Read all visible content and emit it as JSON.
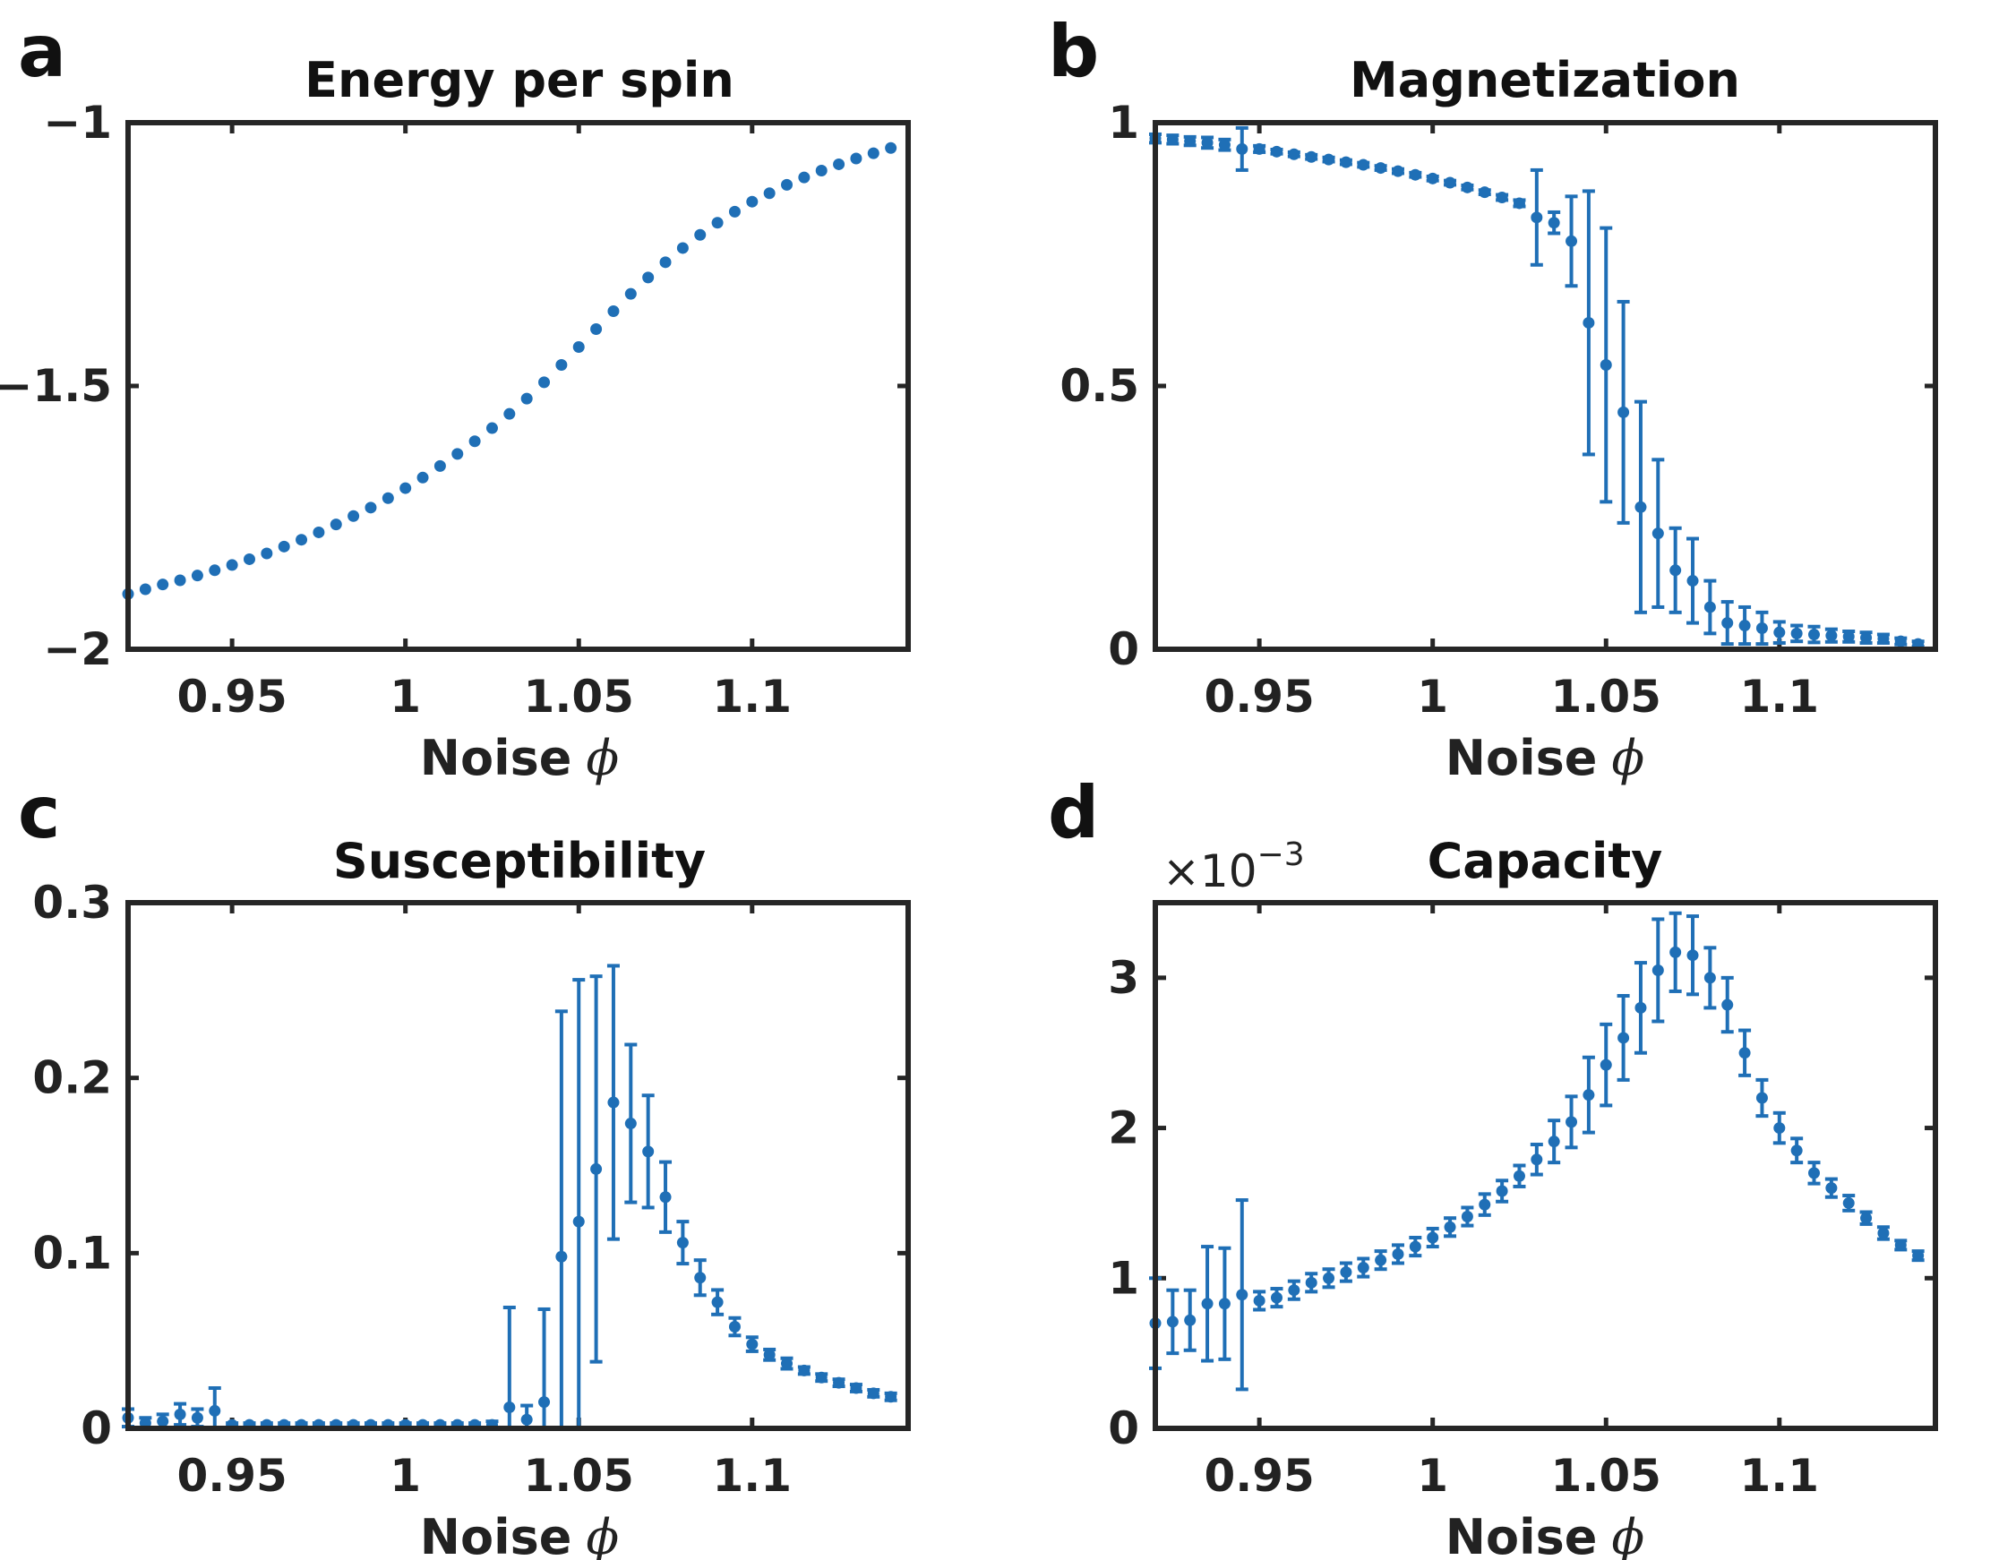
{
  "figure": {
    "colors": {
      "series": "#1f6fb6",
      "axes": "#262626",
      "text": "#222222"
    }
  },
  "chart_data": [
    {
      "panel": "a",
      "type": "scatter",
      "title": "Energy per spin",
      "xlabel": "Noise",
      "xlabel_symbol": "ϕ",
      "ylabel": "",
      "xlim": [
        0.92,
        1.145
      ],
      "ylim": [
        -2,
        -1
      ],
      "xticks": [
        0.95,
        1,
        1.05,
        1.1
      ],
      "xtick_labels": [
        "0.95",
        "1",
        "1.05",
        "1.1"
      ],
      "yticks": [
        -2,
        -1.5,
        -1
      ],
      "ytick_labels": [
        "−2",
        "−1.5",
        "−1"
      ],
      "x": [
        0.92,
        0.925,
        0.93,
        0.935,
        0.94,
        0.945,
        0.95,
        0.955,
        0.96,
        0.965,
        0.97,
        0.975,
        0.98,
        0.985,
        0.99,
        0.995,
        1.0,
        1.005,
        1.01,
        1.015,
        1.02,
        1.025,
        1.03,
        1.035,
        1.04,
        1.045,
        1.05,
        1.055,
        1.06,
        1.065,
        1.07,
        1.075,
        1.08,
        1.085,
        1.09,
        1.095,
        1.1,
        1.105,
        1.11,
        1.115,
        1.12,
        1.125,
        1.13,
        1.135,
        1.14
      ],
      "y": [
        -1.895,
        -1.886,
        -1.877,
        -1.869,
        -1.86,
        -1.85,
        -1.84,
        -1.829,
        -1.818,
        -1.805,
        -1.792,
        -1.778,
        -1.763,
        -1.747,
        -1.731,
        -1.713,
        -1.694,
        -1.674,
        -1.652,
        -1.629,
        -1.605,
        -1.58,
        -1.553,
        -1.524,
        -1.493,
        -1.46,
        -1.426,
        -1.392,
        -1.358,
        -1.325,
        -1.294,
        -1.265,
        -1.238,
        -1.213,
        -1.19,
        -1.169,
        -1.15,
        -1.134,
        -1.118,
        -1.104,
        -1.091,
        -1.079,
        -1.068,
        -1.058,
        -1.048
      ],
      "err": []
    },
    {
      "panel": "b",
      "type": "scatter",
      "title": "Magnetization",
      "xlabel": "Noise",
      "xlabel_symbol": "ϕ",
      "ylabel": "",
      "xlim": [
        0.92,
        1.145
      ],
      "ylim": [
        0,
        1
      ],
      "xticks": [
        0.95,
        1,
        1.05,
        1.1
      ],
      "xtick_labels": [
        "0.95",
        "1",
        "1.05",
        "1.1"
      ],
      "yticks": [
        0,
        0.5,
        1
      ],
      "ytick_labels": [
        "0",
        "0.5",
        "1"
      ],
      "x": [
        0.92,
        0.925,
        0.93,
        0.935,
        0.94,
        0.945,
        0.95,
        0.955,
        0.96,
        0.965,
        0.97,
        0.975,
        0.98,
        0.985,
        0.99,
        0.995,
        1.0,
        1.005,
        1.01,
        1.015,
        1.02,
        1.025,
        1.03,
        1.035,
        1.04,
        1.045,
        1.05,
        1.055,
        1.06,
        1.065,
        1.07,
        1.075,
        1.08,
        1.085,
        1.09,
        1.095,
        1.1,
        1.105,
        1.11,
        1.115,
        1.12,
        1.125,
        1.13,
        1.135,
        1.14
      ],
      "y": [
        0.97,
        0.968,
        0.965,
        0.962,
        0.958,
        0.95,
        0.95,
        0.945,
        0.94,
        0.935,
        0.93,
        0.925,
        0.92,
        0.914,
        0.908,
        0.901,
        0.894,
        0.886,
        0.877,
        0.868,
        0.858,
        0.847,
        0.82,
        0.81,
        0.775,
        0.62,
        0.54,
        0.45,
        0.27,
        0.22,
        0.15,
        0.13,
        0.08,
        0.05,
        0.045,
        0.04,
        0.032,
        0.03,
        0.028,
        0.026,
        0.024,
        0.022,
        0.02,
        0.015,
        0.01
      ],
      "err": [
        0.008,
        0.008,
        0.008,
        0.01,
        0.01,
        0.04,
        0.006,
        0.004,
        0.004,
        0.004,
        0.004,
        0.004,
        0.004,
        0.004,
        0.004,
        0.004,
        0.004,
        0.004,
        0.004,
        0.004,
        0.005,
        0.006,
        0.09,
        0.02,
        0.085,
        0.25,
        0.26,
        0.21,
        0.2,
        0.14,
        0.08,
        0.08,
        0.05,
        0.04,
        0.035,
        0.03,
        0.02,
        0.015,
        0.015,
        0.012,
        0.01,
        0.01,
        0.008,
        0.006,
        0.005
      ]
    },
    {
      "panel": "c",
      "type": "scatter",
      "title": "Susceptibility",
      "xlabel": "Noise",
      "xlabel_symbol": "ϕ",
      "ylabel": "",
      "xlim": [
        0.92,
        1.145
      ],
      "ylim": [
        0,
        0.3
      ],
      "xticks": [
        0.95,
        1,
        1.05,
        1.1
      ],
      "xtick_labels": [
        "0.95",
        "1",
        "1.05",
        "1.1"
      ],
      "yticks": [
        0,
        0.1,
        0.2,
        0.3
      ],
      "ytick_labels": [
        "0",
        "0.1",
        "0.2",
        "0.3"
      ],
      "x": [
        0.92,
        0.925,
        0.93,
        0.935,
        0.94,
        0.945,
        0.95,
        0.955,
        0.96,
        0.965,
        0.97,
        0.975,
        0.98,
        0.985,
        0.99,
        0.995,
        1.0,
        1.005,
        1.01,
        1.015,
        1.02,
        1.025,
        1.03,
        1.035,
        1.04,
        1.045,
        1.05,
        1.055,
        1.06,
        1.065,
        1.07,
        1.075,
        1.08,
        1.085,
        1.09,
        1.095,
        1.1,
        1.105,
        1.11,
        1.115,
        1.12,
        1.125,
        1.13,
        1.135,
        1.14
      ],
      "y": [
        0.006,
        0.003,
        0.004,
        0.008,
        0.006,
        0.01,
        0.002,
        0.002,
        0.002,
        0.002,
        0.002,
        0.002,
        0.002,
        0.002,
        0.002,
        0.002,
        0.002,
        0.002,
        0.002,
        0.002,
        0.002,
        0.002,
        0.012,
        0.005,
        0.015,
        0.098,
        0.118,
        0.148,
        0.186,
        0.174,
        0.158,
        0.132,
        0.106,
        0.086,
        0.072,
        0.058,
        0.048,
        0.042,
        0.037,
        0.033,
        0.029,
        0.026,
        0.023,
        0.02,
        0.018
      ],
      "err": [
        0.005,
        0.003,
        0.004,
        0.006,
        0.005,
        0.013,
        0.001,
        0.001,
        0.001,
        0.001,
        0.001,
        0.001,
        0.001,
        0.001,
        0.001,
        0.001,
        0.001,
        0.001,
        0.001,
        0.001,
        0.001,
        0.002,
        0.057,
        0.008,
        0.053,
        0.14,
        0.138,
        0.11,
        0.078,
        0.045,
        0.032,
        0.02,
        0.012,
        0.01,
        0.007,
        0.005,
        0.004,
        0.003,
        0.003,
        0.002,
        0.002,
        0.002,
        0.002,
        0.002,
        0.002
      ]
    },
    {
      "panel": "d",
      "type": "scatter",
      "title": "Capacity",
      "xlabel": "Noise",
      "xlabel_symbol": "ϕ",
      "ylabel": "",
      "y_scale_label": "×10",
      "y_scale_exponent": "−3",
      "xlim": [
        0.92,
        1.145
      ],
      "ylim": [
        0,
        3.5
      ],
      "xticks": [
        0.95,
        1,
        1.05,
        1.1
      ],
      "xtick_labels": [
        "0.95",
        "1",
        "1.05",
        "1.1"
      ],
      "yticks": [
        0,
        1,
        2,
        3
      ],
      "ytick_labels": [
        "0",
        "1",
        "2",
        "3"
      ],
      "x": [
        0.92,
        0.925,
        0.93,
        0.935,
        0.94,
        0.945,
        0.95,
        0.955,
        0.96,
        0.965,
        0.97,
        0.975,
        0.98,
        0.985,
        0.99,
        0.995,
        1.0,
        1.005,
        1.01,
        1.015,
        1.02,
        1.025,
        1.03,
        1.035,
        1.04,
        1.045,
        1.05,
        1.055,
        1.06,
        1.065,
        1.07,
        1.075,
        1.08,
        1.085,
        1.09,
        1.095,
        1.1,
        1.105,
        1.11,
        1.115,
        1.12,
        1.125,
        1.13,
        1.135,
        1.14
      ],
      "y": [
        0.7,
        0.71,
        0.72,
        0.83,
        0.83,
        0.89,
        0.85,
        0.87,
        0.92,
        0.97,
        1.0,
        1.04,
        1.07,
        1.12,
        1.16,
        1.21,
        1.27,
        1.34,
        1.41,
        1.49,
        1.58,
        1.68,
        1.79,
        1.91,
        2.04,
        2.22,
        2.42,
        2.6,
        2.8,
        3.05,
        3.17,
        3.15,
        3.0,
        2.82,
        2.5,
        2.2,
        2.0,
        1.85,
        1.7,
        1.6,
        1.5,
        1.4,
        1.3,
        1.22,
        1.15
      ],
      "err": [
        0.3,
        0.21,
        0.2,
        0.38,
        0.37,
        0.63,
        0.06,
        0.06,
        0.06,
        0.06,
        0.06,
        0.06,
        0.06,
        0.06,
        0.06,
        0.06,
        0.06,
        0.06,
        0.06,
        0.07,
        0.07,
        0.07,
        0.1,
        0.14,
        0.17,
        0.25,
        0.27,
        0.28,
        0.3,
        0.34,
        0.26,
        0.26,
        0.2,
        0.18,
        0.15,
        0.12,
        0.1,
        0.08,
        0.07,
        0.06,
        0.05,
        0.04,
        0.04,
        0.03,
        0.03
      ]
    }
  ]
}
